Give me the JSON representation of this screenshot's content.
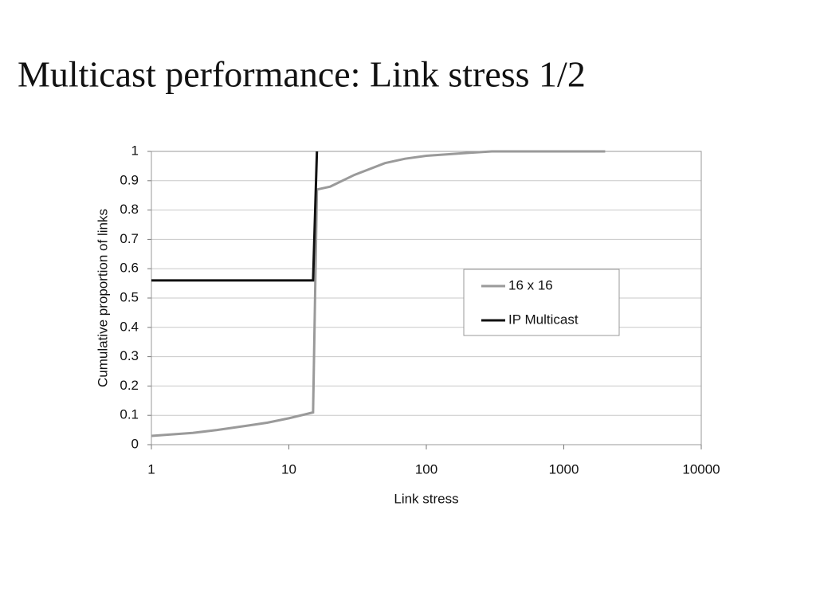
{
  "chart_data": {
    "type": "line",
    "title": "Multicast performance: Link stress 1/2",
    "x_label": "Link stress",
    "y_label": "Cumulative proportion of links",
    "log_x": true,
    "grid": true,
    "legend_position": "right",
    "xlim": [
      1,
      10000
    ],
    "xticks": [
      1,
      10,
      100,
      1000,
      10000
    ],
    "ylim": [
      0,
      1
    ],
    "yticks": [
      0,
      0.1,
      0.2,
      0.3,
      0.4,
      0.5,
      0.6,
      0.7,
      0.8,
      0.9,
      1
    ],
    "series": [
      {
        "name": "16 x 16",
        "color": "#9a9a9a",
        "x": [
          1,
          2,
          3,
          5,
          7,
          10,
          15,
          16,
          20,
          30,
          50,
          70,
          100,
          200,
          300,
          1000,
          2000
        ],
        "values": [
          0.03,
          0.04,
          0.05,
          0.065,
          0.075,
          0.09,
          0.11,
          0.87,
          0.88,
          0.92,
          0.96,
          0.975,
          0.985,
          0.995,
          1,
          1,
          1
        ]
      },
      {
        "name": "IP Multicast",
        "color": "#111111",
        "x": [
          1,
          15,
          16
        ],
        "values": [
          0.56,
          0.56,
          1
        ]
      }
    ]
  }
}
